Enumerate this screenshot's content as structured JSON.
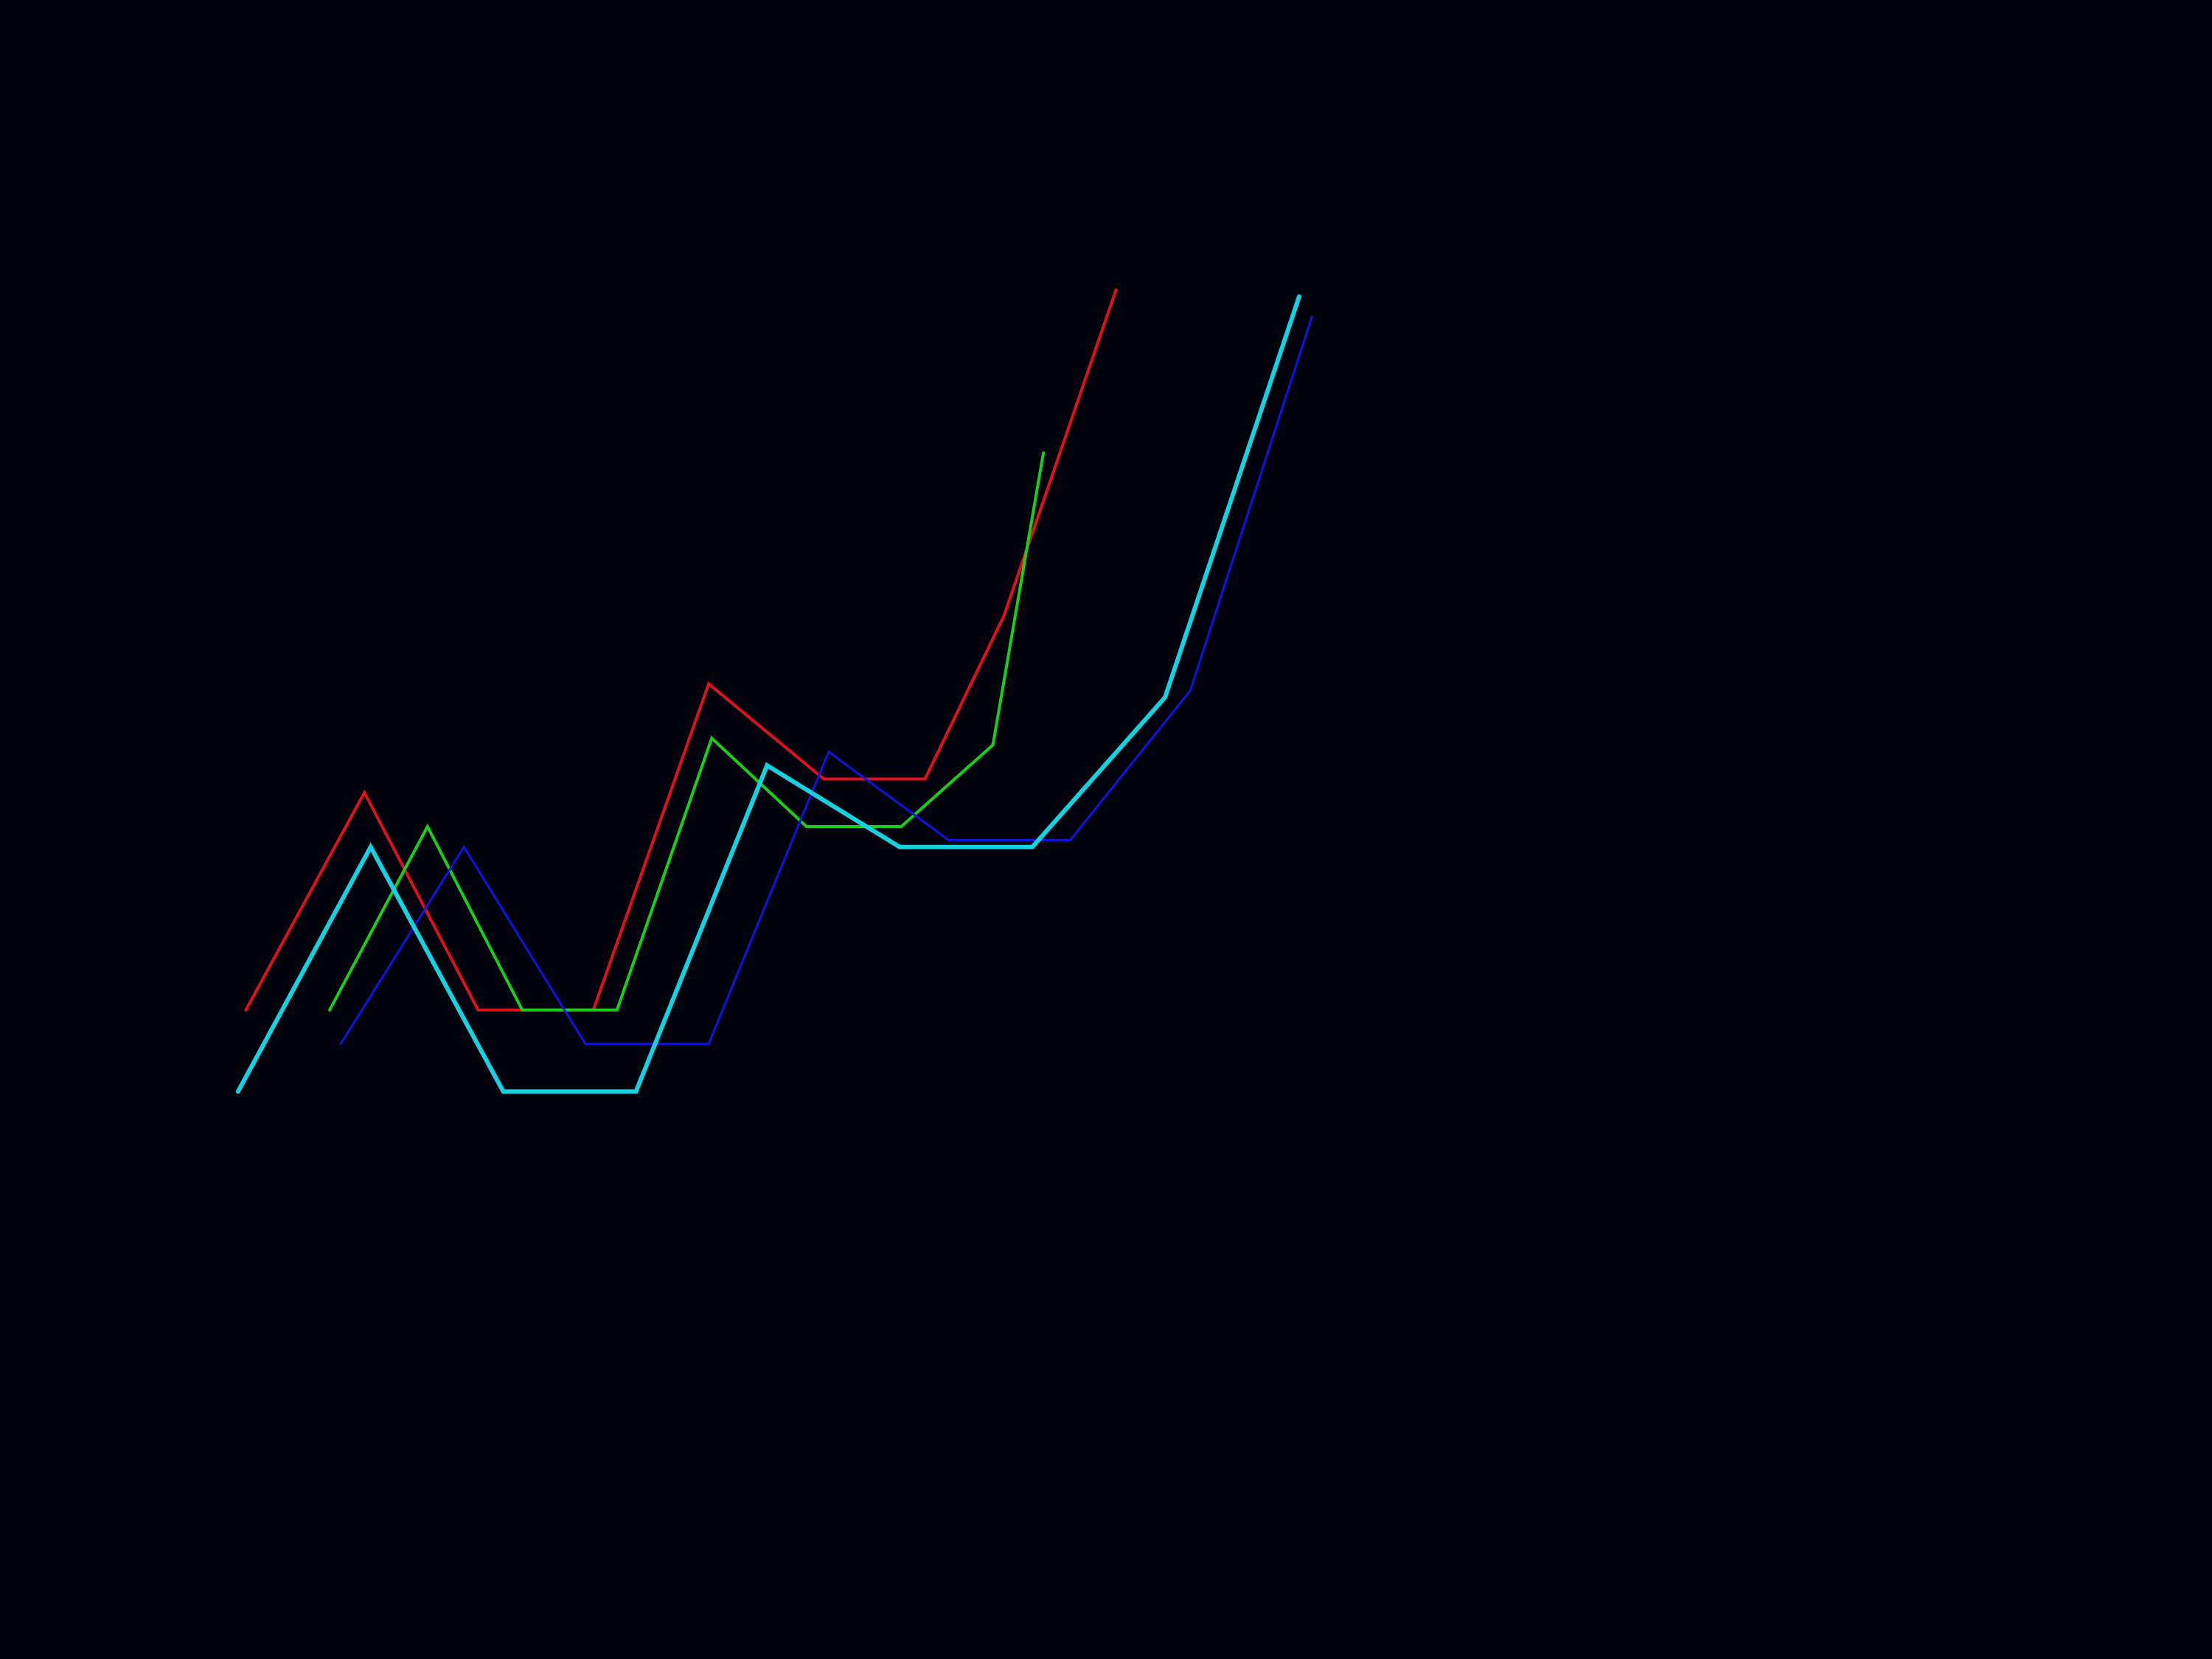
{
  "background_color": "#01020b",
  "chart_data": {
    "type": "line",
    "grid": false,
    "legend": "none",
    "axes_visible": false,
    "xlim": [
      0,
      12
    ],
    "ylim": [
      0,
      10
    ],
    "series": [
      {
        "color": "#e0101e",
        "stroke_width": 4,
        "x": [
          0.25,
          1.0,
          1.72,
          2.12,
          2.45,
          3.18,
          3.91,
          4.55,
          5.05,
          5.76
        ],
        "y": [
          3.3,
          4.9,
          3.3,
          3.3,
          3.3,
          5.7,
          5.0,
          5.0,
          6.2,
          8.6
        ]
      },
      {
        "color": "#18d018",
        "stroke_width": 4,
        "x": [
          0.78,
          1.4,
          2.0,
          2.6,
          3.2,
          3.8,
          4.4,
          4.98,
          5.3
        ],
        "y": [
          3.3,
          4.65,
          3.3,
          3.3,
          5.3,
          4.65,
          4.65,
          5.25,
          7.4
        ]
      },
      {
        "color": "#0b16e6",
        "stroke_width": 3,
        "x": [
          0.85,
          1.63,
          2.4,
          3.18,
          3.94,
          4.7,
          5.47,
          6.23,
          7.0
        ],
        "y": [
          3.05,
          4.5,
          3.05,
          3.05,
          5.2,
          4.55,
          4.55,
          5.65,
          8.4
        ]
      },
      {
        "color": "#14d2e0",
        "stroke_width": 6,
        "x": [
          0.2,
          1.04,
          1.88,
          2.72,
          3.55,
          4.39,
          5.23,
          6.07,
          6.92
        ],
        "y": [
          2.7,
          4.5,
          2.7,
          2.7,
          5.1,
          4.5,
          4.5,
          5.6,
          8.55
        ]
      }
    ]
  }
}
